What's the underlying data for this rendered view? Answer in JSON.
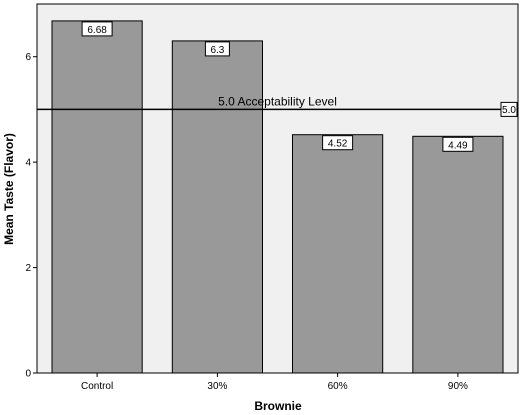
{
  "chart_data": {
    "type": "bar",
    "title": "",
    "xlabel": "Brownie",
    "ylabel": "Mean Taste (Flavor)",
    "categories": [
      "Control",
      "30%",
      "60%",
      "90%"
    ],
    "values": [
      6.68,
      6.3,
      4.52,
      4.49
    ],
    "data_labels": [
      "6.68",
      "6.3",
      "4.52",
      "4.49"
    ],
    "ylim": [
      0,
      7.0
    ],
    "yticks": [
      0,
      2,
      4,
      6
    ],
    "ytick_labels": [
      "0",
      "2",
      "4",
      "6"
    ],
    "grid": false,
    "legend": "none",
    "reference_line": {
      "value": 5.0,
      "label": "5.0 Acceptability Level",
      "end_label": "5.0"
    },
    "colors": {
      "bar_fill": "#999999",
      "bar_stroke": "#000000",
      "plot_background": "#f0f0f0",
      "frame": "#000000"
    }
  }
}
